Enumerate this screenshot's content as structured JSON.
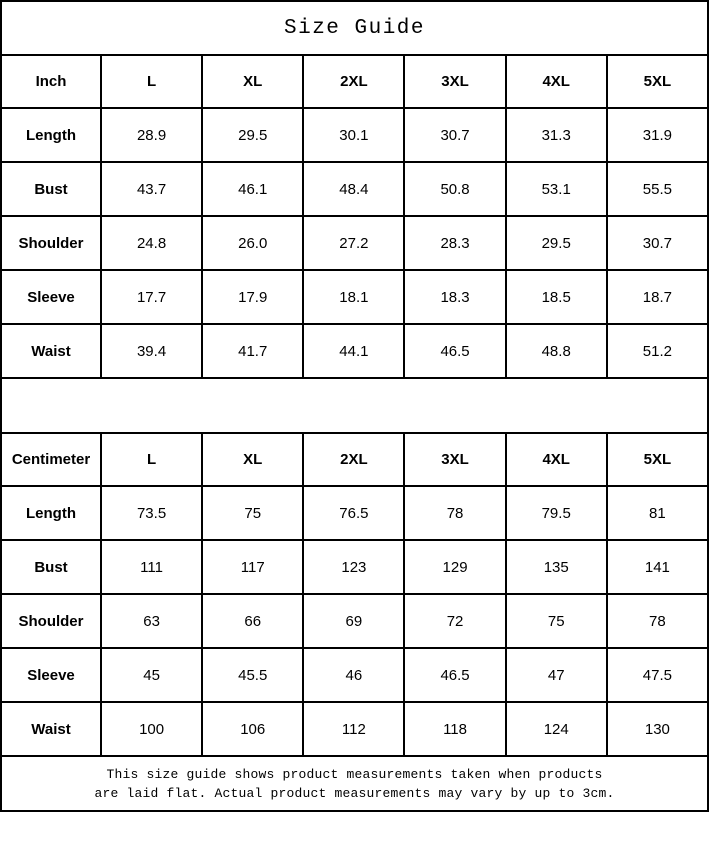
{
  "title": "Size Guide",
  "colors": {
    "border": "#000000",
    "background": "#ffffff",
    "text": "#000000"
  },
  "inch_table": {
    "unit_label": "Inch",
    "sizes": [
      "L",
      "XL",
      "2XL",
      "3XL",
      "4XL",
      "5XL"
    ],
    "rows": [
      {
        "label": "Length",
        "values": [
          "28.9",
          "29.5",
          "30.1",
          "30.7",
          "31.3",
          "31.9"
        ]
      },
      {
        "label": "Bust",
        "values": [
          "43.7",
          "46.1",
          "48.4",
          "50.8",
          "53.1",
          "55.5"
        ]
      },
      {
        "label": "Shoulder",
        "values": [
          "24.8",
          "26.0",
          "27.2",
          "28.3",
          "29.5",
          "30.7"
        ]
      },
      {
        "label": "Sleeve",
        "values": [
          "17.7",
          "17.9",
          "18.1",
          "18.3",
          "18.5",
          "18.7"
        ]
      },
      {
        "label": "Waist",
        "values": [
          "39.4",
          "41.7",
          "44.1",
          "46.5",
          "48.8",
          "51.2"
        ]
      }
    ]
  },
  "centimeter_table": {
    "unit_label": "Centimeter",
    "sizes": [
      "L",
      "XL",
      "2XL",
      "3XL",
      "4XL",
      "5XL"
    ],
    "rows": [
      {
        "label": "Length",
        "values": [
          "73.5",
          "75",
          "76.5",
          "78",
          "79.5",
          "81"
        ]
      },
      {
        "label": "Bust",
        "values": [
          "111",
          "117",
          "123",
          "129",
          "135",
          "141"
        ]
      },
      {
        "label": "Shoulder",
        "values": [
          "63",
          "66",
          "69",
          "72",
          "75",
          "78"
        ]
      },
      {
        "label": "Sleeve",
        "values": [
          "45",
          "45.5",
          "46",
          "46.5",
          "47",
          "47.5"
        ]
      },
      {
        "label": "Waist",
        "values": [
          "100",
          "106",
          "112",
          "118",
          "124",
          "130"
        ]
      }
    ]
  },
  "footer": {
    "line1": "This size guide shows product measurements taken when products",
    "line2": "are laid flat. Actual product measurements may vary by up to 3cm."
  },
  "chart_data": [
    {
      "type": "table",
      "title": "Inch",
      "columns": [
        "Inch",
        "L",
        "XL",
        "2XL",
        "3XL",
        "4XL",
        "5XL"
      ],
      "rows": [
        [
          "Length",
          28.9,
          29.5,
          30.1,
          30.7,
          31.3,
          31.9
        ],
        [
          "Bust",
          43.7,
          46.1,
          48.4,
          50.8,
          53.1,
          55.5
        ],
        [
          "Shoulder",
          24.8,
          26.0,
          27.2,
          28.3,
          29.5,
          30.7
        ],
        [
          "Sleeve",
          17.7,
          17.9,
          18.1,
          18.3,
          18.5,
          18.7
        ],
        [
          "Waist",
          39.4,
          41.7,
          44.1,
          46.5,
          48.8,
          51.2
        ]
      ]
    },
    {
      "type": "table",
      "title": "Centimeter",
      "columns": [
        "Centimeter",
        "L",
        "XL",
        "2XL",
        "3XL",
        "4XL",
        "5XL"
      ],
      "rows": [
        [
          "Length",
          73.5,
          75,
          76.5,
          78,
          79.5,
          81
        ],
        [
          "Bust",
          111,
          117,
          123,
          129,
          135,
          141
        ],
        [
          "Shoulder",
          63,
          66,
          69,
          72,
          75,
          78
        ],
        [
          "Sleeve",
          45,
          45.5,
          46,
          46.5,
          47,
          47.5
        ],
        [
          "Waist",
          100,
          106,
          112,
          118,
          124,
          130
        ]
      ]
    }
  ]
}
